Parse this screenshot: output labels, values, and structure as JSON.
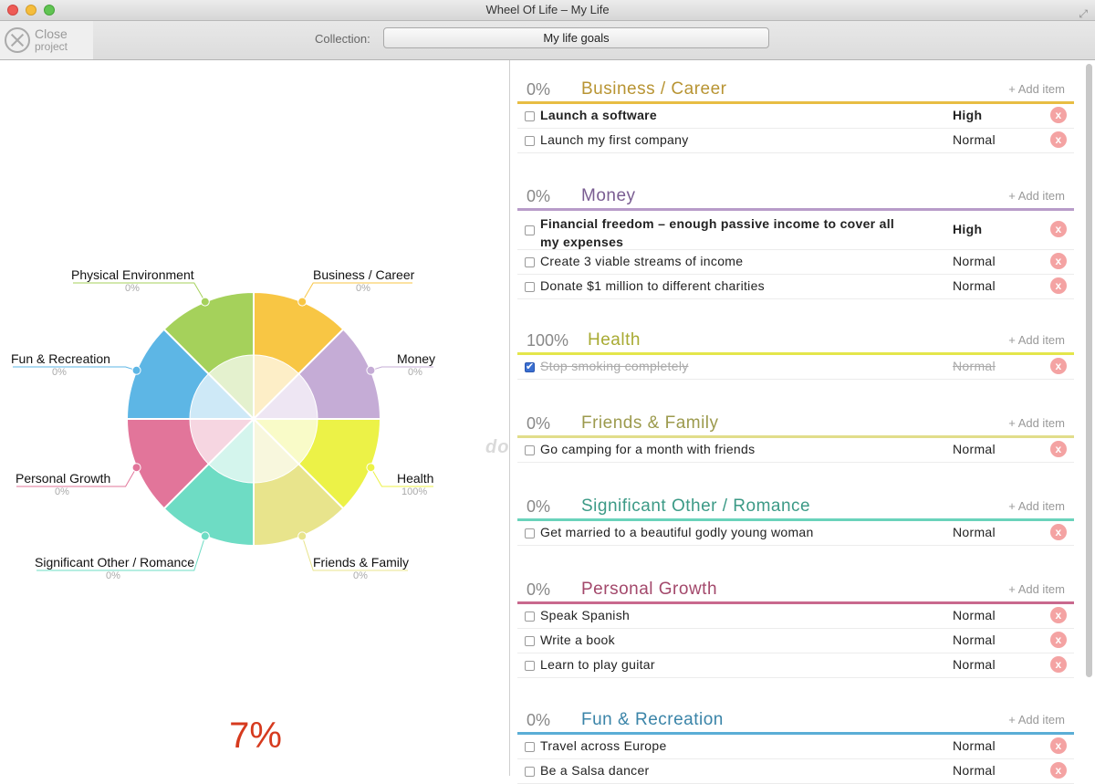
{
  "window": {
    "title": "Wheel Of Life – My Life"
  },
  "toolbar": {
    "close_label": "Close",
    "close_sub": "project",
    "collection_label": "Collection:",
    "collection_value": "My life goals"
  },
  "wheel": {
    "total": "7%",
    "segments": [
      {
        "name": "Business / Career",
        "pct": "0%",
        "value": 0,
        "color": "#f8c644"
      },
      {
        "name": "Money",
        "pct": "0%",
        "value": 0,
        "color": "#c5acd6"
      },
      {
        "name": "Health",
        "pct": "100%",
        "value": 100,
        "color": "#ecf247"
      },
      {
        "name": "Friends & Family",
        "pct": "0%",
        "value": 0,
        "color": "#e8e48c"
      },
      {
        "name": "Significant Other / Romance",
        "pct": "0%",
        "value": 0,
        "color": "#6edcc4"
      },
      {
        "name": "Personal Growth",
        "pct": "0%",
        "value": 0,
        "color": "#e2759a"
      },
      {
        "name": "Fun & Recreation",
        "pct": "0%",
        "value": 0,
        "color": "#5db6e5"
      },
      {
        "name": "Physical Environment",
        "pct": "0%",
        "value": 0,
        "color": "#a5d15b"
      }
    ]
  },
  "watermark": "download",
  "sections": [
    {
      "pct": "0%",
      "title": "Business / Career",
      "color": "#b89433",
      "line": "#e8bd43",
      "add": "+ Add item",
      "items": [
        {
          "text": "Launch a software",
          "priority": "High",
          "bold": true,
          "done": false
        },
        {
          "text": "Launch my first company",
          "priority": "Normal",
          "bold": false,
          "done": false
        }
      ]
    },
    {
      "pct": "0%",
      "title": "Money",
      "color": "#7a5d92",
      "line": "#b89bc9",
      "add": "+ Add item",
      "items": [
        {
          "text": "Financial freedom – enough passive income to cover all my expenses",
          "priority": "High",
          "bold": true,
          "done": false
        },
        {
          "text": "Create 3 viable streams of income",
          "priority": "Normal",
          "bold": false,
          "done": false
        },
        {
          "text": "Donate $1 million to different charities",
          "priority": "Normal",
          "bold": false,
          "done": false
        }
      ]
    },
    {
      "pct": "100%",
      "title": "Health",
      "color": "#a8aa32",
      "line": "#e4e64b",
      "add": "+ Add item",
      "items": [
        {
          "text": "Stop smoking completely",
          "priority": "Normal",
          "bold": false,
          "done": true
        }
      ]
    },
    {
      "pct": "0%",
      "title": "Friends & Family",
      "color": "#9c9a4d",
      "line": "#e1dd8a",
      "add": "+ Add item",
      "items": [
        {
          "text": "Go camping for a month with friends",
          "priority": "Normal",
          "bold": false,
          "done": false
        }
      ]
    },
    {
      "pct": "0%",
      "title": "Significant Other / Romance",
      "color": "#3c9a86",
      "line": "#6ad3bb",
      "add": "+ Add item",
      "items": [
        {
          "text": "Get married to a beautiful godly young woman",
          "priority": "Normal",
          "bold": false,
          "done": false
        }
      ]
    },
    {
      "pct": "0%",
      "title": "Personal Growth",
      "color": "#a3486b",
      "line": "#c9698e",
      "add": "+ Add item",
      "items": [
        {
          "text": "Speak Spanish",
          "priority": "Normal",
          "bold": false,
          "done": false
        },
        {
          "text": "Write a book",
          "priority": "Normal",
          "bold": false,
          "done": false
        },
        {
          "text": "Learn to play guitar",
          "priority": "Normal",
          "bold": false,
          "done": false
        }
      ]
    },
    {
      "pct": "0%",
      "title": "Fun & Recreation",
      "color": "#3a84a8",
      "line": "#5aaed6",
      "add": "+ Add item",
      "items": [
        {
          "text": "Travel across Europe",
          "priority": "Normal",
          "bold": false,
          "done": false
        },
        {
          "text": "Be a Salsa dancer",
          "priority": "Normal",
          "bold": false,
          "done": false
        }
      ]
    }
  ]
}
